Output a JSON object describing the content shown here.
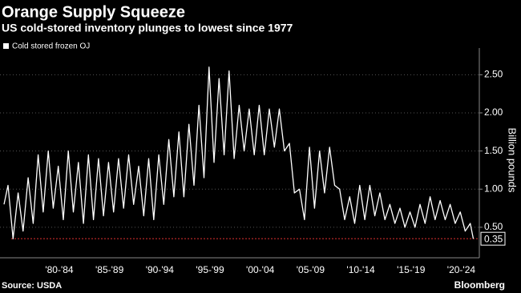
{
  "chart_data": {
    "type": "line",
    "title": "Orange Supply Squeeze",
    "subtitle": "US cold-stored inventory plunges to lowest since 1977",
    "y_label": "Billion pounds",
    "source": "Source: USDA",
    "brand": "Bloomberg",
    "x": [
      1977.0,
      1977.4,
      1977.9,
      1978.4,
      1978.9,
      1979.4,
      1979.9,
      1980.4,
      1980.9,
      1981.4,
      1981.9,
      1982.4,
      1982.9,
      1983.4,
      1983.9,
      1984.4,
      1984.9,
      1985.4,
      1985.9,
      1986.4,
      1986.9,
      1987.4,
      1987.9,
      1988.4,
      1988.9,
      1989.4,
      1989.9,
      1990.4,
      1990.9,
      1991.4,
      1991.9,
      1992.4,
      1992.9,
      1993.4,
      1993.9,
      1994.4,
      1994.9,
      1995.4,
      1995.9,
      1996.4,
      1996.9,
      1997.4,
      1997.9,
      1998.4,
      1998.9,
      1999.4,
      1999.9,
      2000.4,
      2000.9,
      2001.4,
      2001.9,
      2002.4,
      2002.9,
      2003.4,
      2003.9,
      2004.4,
      2004.9,
      2005.4,
      2005.9,
      2006.4,
      2006.9,
      2007.4,
      2007.9,
      2008.4,
      2008.9,
      2009.4,
      2009.9,
      2010.4,
      2010.9,
      2011.4,
      2011.9,
      2012.4,
      2012.9,
      2013.4,
      2013.9,
      2014.4,
      2014.9,
      2015.4,
      2015.9,
      2016.4,
      2016.9,
      2017.4,
      2017.9,
      2018.4,
      2018.9,
      2019.4,
      2019.9,
      2020.4,
      2020.9,
      2021.4,
      2021.9,
      2022.4,
      2022.9,
      2023.4,
      2023.7
    ],
    "series": [
      {
        "name": "Cold stored frozen OJ",
        "color": "#ffffff",
        "values": [
          0.8,
          1.05,
          0.35,
          0.95,
          0.45,
          1.15,
          0.55,
          1.45,
          0.7,
          1.5,
          0.75,
          1.3,
          0.6,
          1.5,
          0.7,
          1.35,
          0.55,
          1.45,
          0.6,
          1.4,
          0.65,
          1.35,
          0.7,
          1.4,
          0.75,
          1.45,
          0.8,
          1.3,
          0.65,
          1.4,
          0.6,
          1.45,
          0.8,
          1.65,
          0.9,
          1.75,
          0.9,
          1.85,
          1.05,
          2.1,
          1.15,
          2.6,
          1.35,
          2.45,
          1.45,
          2.55,
          1.4,
          2.1,
          1.5,
          2.05,
          1.45,
          2.1,
          1.45,
          2.05,
          1.55,
          2.05,
          1.5,
          1.6,
          0.95,
          1.0,
          0.6,
          1.55,
          0.75,
          1.5,
          0.95,
          1.55,
          1.05,
          1.0,
          0.6,
          0.9,
          0.55,
          1.05,
          0.6,
          1.05,
          0.65,
          0.95,
          0.6,
          0.8,
          0.55,
          0.75,
          0.5,
          0.7,
          0.5,
          0.8,
          0.55,
          0.9,
          0.6,
          0.85,
          0.6,
          0.8,
          0.55,
          0.7,
          0.45,
          0.55,
          0.35
        ]
      }
    ],
    "reference_line": 0.35,
    "reference_color": "#e03030",
    "xlim": [
      1976.6,
      2024.3
    ],
    "xticks": [
      {
        "value": 1982.5,
        "label": "'80-'84"
      },
      {
        "value": 1987.5,
        "label": "'85-'89"
      },
      {
        "value": 1992.5,
        "label": "'90-'94"
      },
      {
        "value": 1997.5,
        "label": "'95-'99"
      },
      {
        "value": 2002.5,
        "label": "'00-'04"
      },
      {
        "value": 2007.5,
        "label": "'05-'09"
      },
      {
        "value": 2012.5,
        "label": "'10-'14"
      },
      {
        "value": 2017.5,
        "label": "'15-'19"
      },
      {
        "value": 2022.5,
        "label": "'20-'24"
      }
    ],
    "ylim": [
      0.1,
      2.85
    ],
    "yticks": [
      {
        "value": 0.5,
        "label": "0.50"
      },
      {
        "value": 1,
        "label": "1.00"
      },
      {
        "value": 1.5,
        "label": "1.50"
      },
      {
        "value": 2,
        "label": "2.00"
      },
      {
        "value": 2.5,
        "label": "2.50"
      }
    ],
    "grid": true
  }
}
